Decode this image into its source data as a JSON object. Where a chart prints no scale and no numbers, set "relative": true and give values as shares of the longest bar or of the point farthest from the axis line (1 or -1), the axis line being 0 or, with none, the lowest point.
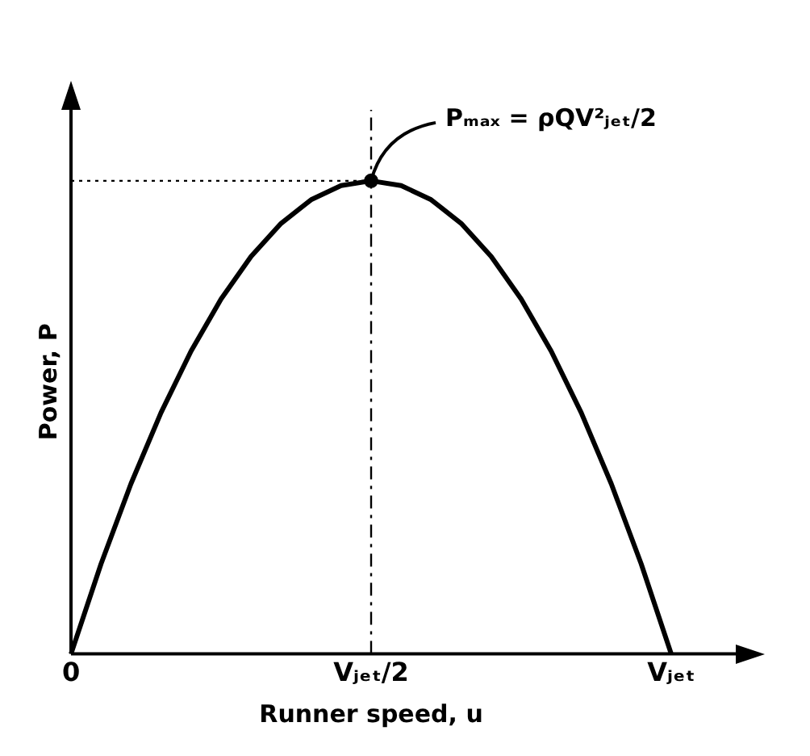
{
  "chart_data": {
    "type": "line",
    "relative": true,
    "xlabel": "Runner speed, u",
    "ylabel": "Power, P",
    "categories": [
      "0",
      null,
      null,
      null,
      null,
      null,
      null,
      null,
      null,
      null,
      "Vⱼₑₜ/2",
      null,
      null,
      null,
      null,
      null,
      null,
      null,
      null,
      null,
      "Vⱼₑₜ"
    ],
    "series": [
      {
        "type": "line",
        "color": "#000000",
        "marker": "none",
        "line_style": "solid",
        "values": [
          0,
          0.19,
          0.36,
          0.51,
          0.64,
          0.75,
          0.84,
          0.91,
          0.96,
          0.99,
          1,
          0.99,
          0.96,
          0.91,
          0.84,
          0.75,
          0.64,
          0.51,
          0.36,
          0.19,
          0
        ]
      },
      {
        "type": "scatter",
        "color": "#000000",
        "marker": "circle",
        "x": [
          "Vⱼₑₜ/2"
        ],
        "values": [
          1
        ]
      }
    ],
    "ref_lines": [
      {
        "axis": "y",
        "value": 1,
        "line_style": "dotted",
        "color": "#000000"
      },
      {
        "axis": "x",
        "value": "Vⱼₑₜ/2",
        "line_style": "dashdot",
        "color": "#000000"
      }
    ],
    "annotations": [
      {
        "text": "Pₘₐₓ = ρQV²ⱼₑₜ/2",
        "x": "Vⱼₑₜ/2",
        "y": 1
      }
    ],
    "grid": false,
    "legend": false
  }
}
